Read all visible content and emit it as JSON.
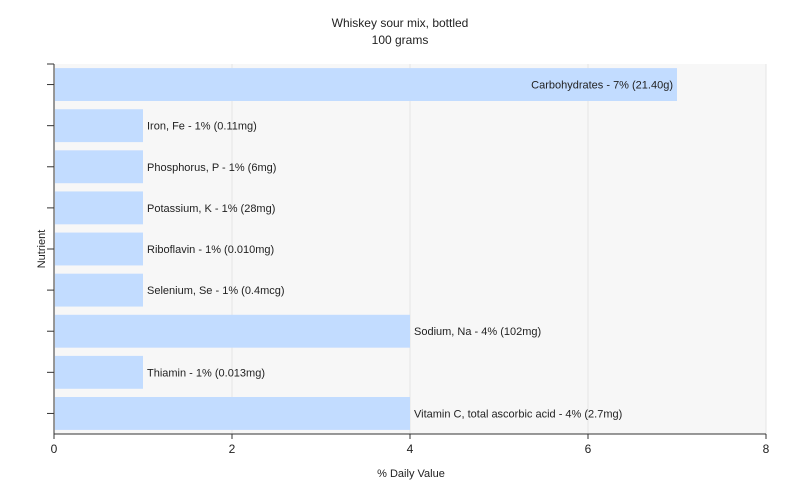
{
  "chart_data": {
    "type": "bar",
    "orientation": "horizontal",
    "title": "Whiskey sour mix, bottled",
    "subtitle": "100 grams",
    "xlabel": "% Daily Value",
    "ylabel": "Nutrient",
    "xlim": [
      0,
      8
    ],
    "xticks": [
      0,
      2,
      4,
      6,
      8
    ],
    "grid": true,
    "colors": {
      "bar": "#c2dcff",
      "plot_bg": "#f7f7f7",
      "grid": "#e6e6e6",
      "axis": "#333333"
    },
    "categories": [
      "Carbohydrates",
      "Iron, Fe",
      "Phosphorus, P",
      "Potassium, K",
      "Riboflavin",
      "Selenium, Se",
      "Sodium, Na",
      "Thiamin",
      "Vitamin C, total ascorbic acid"
    ],
    "values": [
      7,
      1,
      1,
      1,
      1,
      1,
      4,
      1,
      4
    ],
    "labels": [
      "Carbohydrates - 7% (21.40g)",
      "Iron, Fe - 1% (0.11mg)",
      "Phosphorus, P - 1% (6mg)",
      "Potassium, K - 1% (28mg)",
      "Riboflavin - 1% (0.010mg)",
      "Selenium, Se - 1% (0.4mcg)",
      "Sodium, Na - 4% (102mg)",
      "Thiamin - 1% (0.013mg)",
      "Vitamin C, total ascorbic acid - 4% (2.7mg)"
    ]
  }
}
